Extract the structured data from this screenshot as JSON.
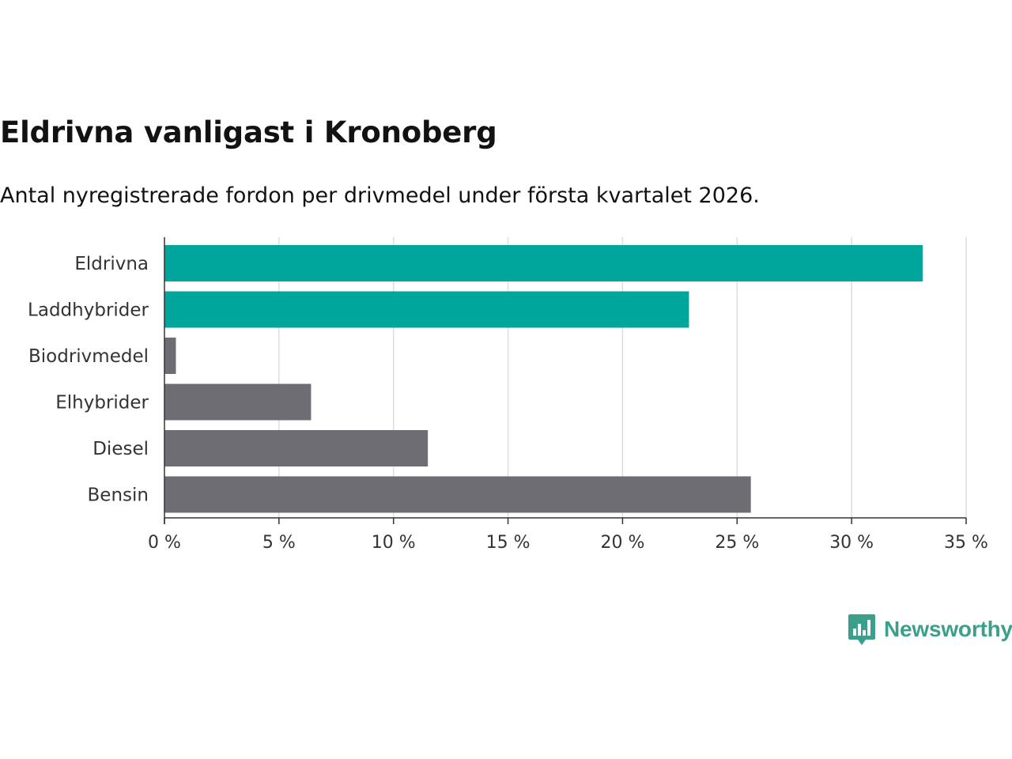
{
  "title": "Eldrivna vanligast i Kronoberg",
  "subtitle": "Antal nyregistrerade fordon per drivmedel under första kvartalet 2026.",
  "chart_data": {
    "type": "bar",
    "orientation": "horizontal",
    "categories": [
      "Eldrivna",
      "Laddhybrider",
      "Biodrivmedel",
      "Elhybrider",
      "Diesel",
      "Bensin"
    ],
    "values": [
      33.1,
      22.9,
      0.5,
      6.4,
      11.5,
      25.6
    ],
    "highlight": [
      true,
      true,
      false,
      false,
      false,
      false
    ],
    "xlim": [
      0,
      35
    ],
    "xticks": [
      0,
      5,
      10,
      15,
      20,
      25,
      30,
      35
    ],
    "xtick_labels": [
      "0 %",
      "5 %",
      "10 %",
      "15 %",
      "20 %",
      "25 %",
      "30 %",
      "35 %"
    ],
    "unit": "%",
    "grid": true,
    "colors": {
      "highlight": "#00a59b",
      "default": "#6e6d73",
      "grid": "#dddddd",
      "axis": "#333333"
    }
  },
  "brand": {
    "name": "Newsworthy",
    "color": "#3c9f8c",
    "icon": "newsworthy-logo-icon"
  }
}
